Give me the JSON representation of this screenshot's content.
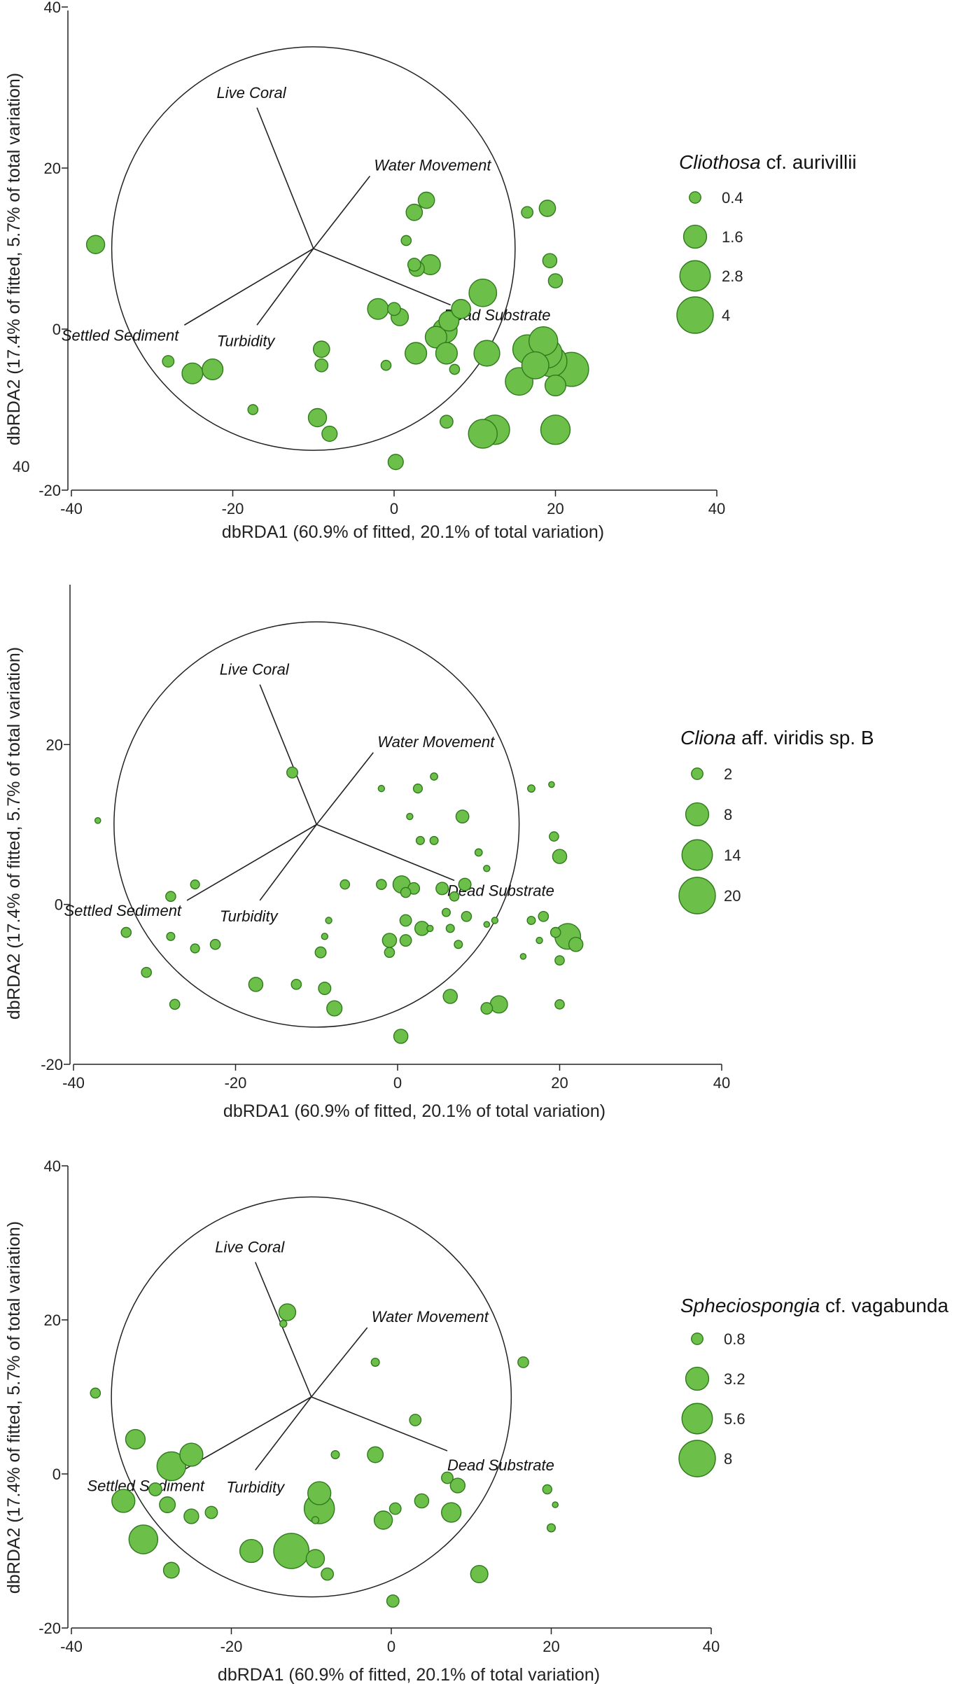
{
  "chart_data": [
    {
      "type": "scatter",
      "title": "",
      "xlabel": "dbRDA1 (60.9% of fitted, 20.1% of total variation)",
      "ylabel": "dbRDA2 (17.4% of fitted, 5.7% of total variation)",
      "xlim": [
        -40,
        40
      ],
      "ylim": [
        -20,
        40
      ],
      "x_ticks": [
        "-40",
        "-20",
        "0",
        "20",
        "40"
      ],
      "y_ticks": [
        "40",
        "20",
        "0",
        "-20"
      ],
      "stray_label": "40",
      "correlation_circle": {
        "center": [
          -10,
          10
        ],
        "radius": 25
      },
      "vectors": [
        {
          "name": "Live Coral",
          "end": [
            -17,
            27.5
          ]
        },
        {
          "name": "Water Movement",
          "end": [
            -3,
            19
          ]
        },
        {
          "name": "Dead Substrate",
          "end": [
            7,
            3
          ]
        },
        {
          "name": "Settled Sediment",
          "end": [
            -26,
            0.5
          ]
        },
        {
          "name": "Turbidity",
          "end": [
            -17,
            0.5
          ]
        }
      ],
      "legend": {
        "species_genus": "Cliothosa",
        "species_rest": " cf. aurivillii",
        "sizes": [
          0.4,
          1.6,
          2.8,
          4
        ],
        "labels": [
          "0.4",
          "1.6",
          "2.8",
          "4"
        ]
      },
      "points": [
        {
          "x": -37,
          "y": 10.5,
          "v": 1.0
        },
        {
          "x": -28,
          "y": -4,
          "v": 0.4
        },
        {
          "x": -25,
          "y": -5.5,
          "v": 1.3
        },
        {
          "x": -22.5,
          "y": -5,
          "v": 1.3
        },
        {
          "x": -17.5,
          "y": -10,
          "v": 0.3
        },
        {
          "x": -9,
          "y": -2.5,
          "v": 0.8
        },
        {
          "x": -9,
          "y": -4.5,
          "v": 0.5
        },
        {
          "x": -9.5,
          "y": -11,
          "v": 1.0
        },
        {
          "x": -8,
          "y": -13,
          "v": 0.7
        },
        {
          "x": -2,
          "y": 2.5,
          "v": 1.3
        },
        {
          "x": 0,
          "y": 2.5,
          "v": 0.5
        },
        {
          "x": 0.7,
          "y": 1.5,
          "v": 0.9
        },
        {
          "x": 1.5,
          "y": 11,
          "v": 0.3
        },
        {
          "x": -1,
          "y": -4.5,
          "v": 0.3
        },
        {
          "x": 2.5,
          "y": 14.5,
          "v": 0.8
        },
        {
          "x": 2.5,
          "y": 8,
          "v": 0.5
        },
        {
          "x": 2.8,
          "y": 7.5,
          "v": 0.7
        },
        {
          "x": 4,
          "y": 16,
          "v": 0.8
        },
        {
          "x": 4.5,
          "y": 8,
          "v": 1.2
        },
        {
          "x": 2.7,
          "y": -3,
          "v": 1.4
        },
        {
          "x": 5.2,
          "y": -1,
          "v": 1.4
        },
        {
          "x": 6.3,
          "y": -0.2,
          "v": 1.8
        },
        {
          "x": 6.5,
          "y": -3,
          "v": 1.4
        },
        {
          "x": 6.8,
          "y": 1,
          "v": 1.2
        },
        {
          "x": 7.5,
          "y": -5,
          "v": 0.3
        },
        {
          "x": 8.3,
          "y": 2.5,
          "v": 1.1
        },
        {
          "x": 11,
          "y": 4.5,
          "v": 2.3
        },
        {
          "x": 11.5,
          "y": -3,
          "v": 2.0
        },
        {
          "x": 6.5,
          "y": -11.5,
          "v": 0.5
        },
        {
          "x": 11,
          "y": -13,
          "v": 2.5
        },
        {
          "x": 12.5,
          "y": -12.5,
          "v": 2.6
        },
        {
          "x": 15.5,
          "y": -6.5,
          "v": 2.3
        },
        {
          "x": 16.5,
          "y": -2.5,
          "v": 2.5
        },
        {
          "x": 17.5,
          "y": -4.5,
          "v": 2.2
        },
        {
          "x": 18.5,
          "y": -1.5,
          "v": 2.5
        },
        {
          "x": 19,
          "y": -3,
          "v": 2.6
        },
        {
          "x": 19.5,
          "y": -4,
          "v": 2.9
        },
        {
          "x": 20,
          "y": -7,
          "v": 1.3
        },
        {
          "x": 22,
          "y": -5,
          "v": 3.5
        },
        {
          "x": 20,
          "y": -12.5,
          "v": 2.6
        },
        {
          "x": 0.2,
          "y": -16.5,
          "v": 0.7
        },
        {
          "x": 16.5,
          "y": 14.5,
          "v": 0.4
        },
        {
          "x": 19,
          "y": 15,
          "v": 0.8
        },
        {
          "x": 19.3,
          "y": 8.5,
          "v": 0.6
        },
        {
          "x": 20,
          "y": 6,
          "v": 0.6
        }
      ]
    },
    {
      "type": "scatter",
      "title": "",
      "xlabel": "dbRDA1 (60.9% of fitted, 20.1% of total variation)",
      "ylabel": "dbRDA2 (17.4% of fitted, 5.7% of total variation)",
      "xlim": [
        -40,
        40
      ],
      "ylim": [
        -20,
        40
      ],
      "x_ticks": [
        "-40",
        "-20",
        "0",
        "20",
        "40"
      ],
      "y_ticks": [
        "20",
        "0",
        "-20"
      ],
      "stray_label": "",
      "correlation_circle": {
        "center": [
          -10,
          10
        ],
        "radius": 25
      },
      "vectors": [
        {
          "name": "Live Coral",
          "end": [
            -17,
            27.5
          ]
        },
        {
          "name": "Water Movement",
          "end": [
            -3,
            19
          ]
        },
        {
          "name": "Dead Substrate",
          "end": [
            7,
            3
          ]
        },
        {
          "name": "Settled Sediment",
          "end": [
            -26,
            0.5
          ]
        },
        {
          "name": "Turbidity",
          "end": [
            -17,
            0.5
          ]
        }
      ],
      "legend": {
        "species_genus": "Cliona",
        "species_rest": " aff. viridis sp. B",
        "sizes": [
          2,
          8,
          14,
          20
        ],
        "labels": [
          "2",
          "8",
          "14",
          "20"
        ]
      },
      "points": [
        {
          "x": -37,
          "y": 10.5,
          "v": 0.5
        },
        {
          "x": -33.5,
          "y": -3.5,
          "v": 1.5
        },
        {
          "x": -31,
          "y": -8.5,
          "v": 1.5
        },
        {
          "x": -28,
          "y": 1,
          "v": 1.5
        },
        {
          "x": -28,
          "y": -4,
          "v": 1.0
        },
        {
          "x": -27.5,
          "y": -12.5,
          "v": 1.5
        },
        {
          "x": -25,
          "y": 2.5,
          "v": 1.2
        },
        {
          "x": -25,
          "y": -5.5,
          "v": 1.2
        },
        {
          "x": -22.5,
          "y": -5,
          "v": 1.5
        },
        {
          "x": -17.5,
          "y": -10,
          "v": 3.0
        },
        {
          "x": -13,
          "y": 16.5,
          "v": 1.8
        },
        {
          "x": -12.5,
          "y": -10,
          "v": 1.5
        },
        {
          "x": -9.5,
          "y": -6,
          "v": 1.8
        },
        {
          "x": -9,
          "y": -4,
          "v": 0.6
        },
        {
          "x": -9,
          "y": -10.5,
          "v": 2.3
        },
        {
          "x": -8.5,
          "y": -2,
          "v": 0.6
        },
        {
          "x": -7.8,
          "y": -13,
          "v": 3.5
        },
        {
          "x": -6.5,
          "y": 2.5,
          "v": 1.3
        },
        {
          "x": -2,
          "y": 14.5,
          "v": 0.6
        },
        {
          "x": -2,
          "y": 2.5,
          "v": 1.5
        },
        {
          "x": -1,
          "y": -4.5,
          "v": 3.0
        },
        {
          "x": -1,
          "y": -6,
          "v": 1.5
        },
        {
          "x": 0.5,
          "y": 2.5,
          "v": 4.5
        },
        {
          "x": 1,
          "y": 1.5,
          "v": 1.5
        },
        {
          "x": 2,
          "y": 2,
          "v": 2.0
        },
        {
          "x": 1,
          "y": -4.5,
          "v": 2.0
        },
        {
          "x": 1,
          "y": -2,
          "v": 2.0
        },
        {
          "x": 1.5,
          "y": 11,
          "v": 0.6
        },
        {
          "x": 2.5,
          "y": 14.5,
          "v": 1.2
        },
        {
          "x": 2.8,
          "y": 8,
          "v": 1.0
        },
        {
          "x": 3,
          "y": -3,
          "v": 3.0
        },
        {
          "x": 4,
          "y": -3,
          "v": 0.6
        },
        {
          "x": 4.5,
          "y": 16,
          "v": 0.8
        },
        {
          "x": 4.5,
          "y": 8,
          "v": 1.0
        },
        {
          "x": 5.5,
          "y": 2,
          "v": 2.3
        },
        {
          "x": 6,
          "y": -1,
          "v": 1.0
        },
        {
          "x": 6.5,
          "y": -3,
          "v": 1.0
        },
        {
          "x": 6.5,
          "y": -11.5,
          "v": 3.0
        },
        {
          "x": 7,
          "y": 1,
          "v": 1.3
        },
        {
          "x": 7.5,
          "y": -5,
          "v": 1.0
        },
        {
          "x": 8,
          "y": 11,
          "v": 2.5
        },
        {
          "x": 8.3,
          "y": 2.5,
          "v": 2.3
        },
        {
          "x": 8.5,
          "y": -1.5,
          "v": 1.5
        },
        {
          "x": 10,
          "y": 6.5,
          "v": 0.8
        },
        {
          "x": 11,
          "y": 4.5,
          "v": 0.6
        },
        {
          "x": 11,
          "y": -2.5,
          "v": 0.5
        },
        {
          "x": 11,
          "y": -13,
          "v": 2.0
        },
        {
          "x": 12,
          "y": -2,
          "v": 0.6
        },
        {
          "x": 12.5,
          "y": -12.5,
          "v": 4.5
        },
        {
          "x": 15.5,
          "y": -6.5,
          "v": 0.5
        },
        {
          "x": 16.5,
          "y": 14.5,
          "v": 0.8
        },
        {
          "x": 16.5,
          "y": -2,
          "v": 1.0
        },
        {
          "x": 17.5,
          "y": -4.5,
          "v": 0.6
        },
        {
          "x": 18,
          "y": -1.5,
          "v": 1.5
        },
        {
          "x": 19,
          "y": 15,
          "v": 0.5
        },
        {
          "x": 19.3,
          "y": 8.5,
          "v": 1.3
        },
        {
          "x": 19.5,
          "y": -3.5,
          "v": 1.5
        },
        {
          "x": 20,
          "y": 6,
          "v": 3.0
        },
        {
          "x": 20,
          "y": -7,
          "v": 1.3
        },
        {
          "x": 20,
          "y": -12.5,
          "v": 1.3
        },
        {
          "x": 21,
          "y": -4,
          "v": 10.0
        },
        {
          "x": 22,
          "y": -5,
          "v": 3.0
        },
        {
          "x": 0.4,
          "y": -16.5,
          "v": 3.0
        }
      ]
    },
    {
      "type": "scatter",
      "title": "",
      "xlabel": "dbRDA1 (60.9% of fitted, 20.1% of total variation)",
      "ylabel": "dbRDA2 (17.4% of fitted, 5.7% of total variation)",
      "xlim": [
        -40,
        40
      ],
      "ylim": [
        -20,
        40
      ],
      "x_ticks": [
        "-40",
        "-20",
        "0",
        "20",
        "40"
      ],
      "y_ticks": [
        "40",
        "20",
        "0",
        "-20"
      ],
      "stray_label": "",
      "correlation_circle": {
        "center": [
          -10,
          10
        ],
        "radius": 25
      },
      "vectors": [
        {
          "name": "Live Coral",
          "end": [
            -17,
            27.5
          ]
        },
        {
          "name": "Water Movement",
          "end": [
            -3,
            19
          ]
        },
        {
          "name": "Dead Substrate",
          "end": [
            7,
            3
          ]
        },
        {
          "name": "Settled Sediment",
          "end": [
            -26,
            0.5
          ]
        },
        {
          "name": "Turbidity",
          "end": [
            -17,
            0.5
          ]
        }
      ],
      "legend": {
        "species_genus": "Spheciospongia",
        "species_rest": " cf. vagabunda",
        "sizes": [
          0.8,
          3.2,
          5.6,
          8
        ],
        "labels": [
          "0.8",
          "3.2",
          "5.6",
          "8"
        ]
      },
      "points": [
        {
          "x": -37,
          "y": 10.5,
          "v": 0.6
        },
        {
          "x": -32,
          "y": 4.5,
          "v": 2.3
        },
        {
          "x": -33.5,
          "y": -3.5,
          "v": 3.2
        },
        {
          "x": -31,
          "y": -8.5,
          "v": 5.0
        },
        {
          "x": -29.5,
          "y": -2,
          "v": 1.0
        },
        {
          "x": -28,
          "y": -4,
          "v": 1.5
        },
        {
          "x": -27.5,
          "y": 1,
          "v": 5.0
        },
        {
          "x": -27.5,
          "y": -12.5,
          "v": 1.5
        },
        {
          "x": -25,
          "y": 2.5,
          "v": 3.2
        },
        {
          "x": -25,
          "y": -5.5,
          "v": 1.3
        },
        {
          "x": -22.5,
          "y": -5,
          "v": 0.9
        },
        {
          "x": -17.5,
          "y": -10,
          "v": 3.2
        },
        {
          "x": -13,
          "y": 21,
          "v": 1.7
        },
        {
          "x": -13.5,
          "y": 19.5,
          "v": 0.3
        },
        {
          "x": -12.5,
          "y": -10,
          "v": 7.5
        },
        {
          "x": -9,
          "y": -2.5,
          "v": 3.2
        },
        {
          "x": -9,
          "y": -4.5,
          "v": 5.5
        },
        {
          "x": -9.5,
          "y": -11,
          "v": 2.0
        },
        {
          "x": -8,
          "y": -13,
          "v": 0.9
        },
        {
          "x": -9.5,
          "y": -6,
          "v": 0.3
        },
        {
          "x": -7,
          "y": 2.5,
          "v": 0.4
        },
        {
          "x": -2,
          "y": 14.5,
          "v": 0.4
        },
        {
          "x": -2,
          "y": 2.5,
          "v": 1.5
        },
        {
          "x": -1,
          "y": -6,
          "v": 2.0
        },
        {
          "x": 0.5,
          "y": -4.5,
          "v": 0.8
        },
        {
          "x": 3,
          "y": 7,
          "v": 0.8
        },
        {
          "x": 3.8,
          "y": -3.5,
          "v": 1.2
        },
        {
          "x": 7,
          "y": -0.5,
          "v": 0.8
        },
        {
          "x": 7.5,
          "y": -5,
          "v": 2.3
        },
        {
          "x": 8.3,
          "y": -1.5,
          "v": 1.3
        },
        {
          "x": 11,
          "y": -13,
          "v": 1.8
        },
        {
          "x": 0.2,
          "y": -16.5,
          "v": 0.9
        },
        {
          "x": 16.5,
          "y": 14.5,
          "v": 0.7
        },
        {
          "x": 19.5,
          "y": -2,
          "v": 0.5
        },
        {
          "x": 20.5,
          "y": -4,
          "v": 0.2
        },
        {
          "x": 20,
          "y": -7,
          "v": 0.4
        }
      ]
    }
  ]
}
